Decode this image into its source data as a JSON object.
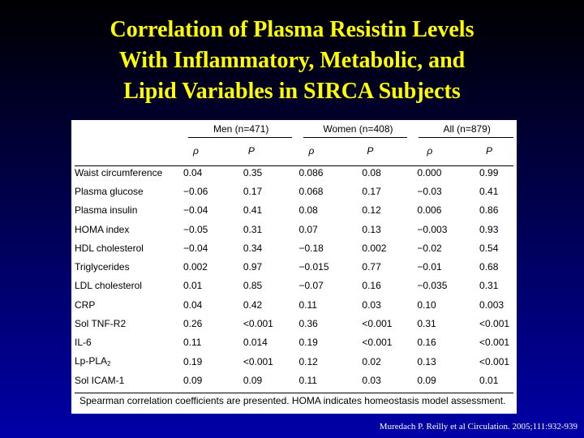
{
  "title": {
    "line1": "Correlation of Plasma Resistin Levels",
    "line2": "With Inflammatory, Metabolic, and",
    "line3": "Lipid Variables in SIRCA Subjects"
  },
  "table": {
    "groups": [
      "Men (n=471)",
      "Women (n=408)",
      "All (n=879)"
    ],
    "subheaders": [
      "ρ",
      "P",
      "ρ",
      "P",
      "ρ",
      "P"
    ],
    "rows": [
      {
        "label": "Waist circumference",
        "values": [
          "0.04",
          "0.35",
          "0.086",
          "0.08",
          "0.000",
          "0.99"
        ]
      },
      {
        "label": "Plasma glucose",
        "values": [
          "−0.06",
          "0.17",
          "0.068",
          "0.17",
          "−0.03",
          "0.41"
        ]
      },
      {
        "label": "Plasma insulin",
        "values": [
          "−0.04",
          "0.41",
          "0.08",
          "0.12",
          "0.006",
          "0.86"
        ]
      },
      {
        "label": "HOMA index",
        "values": [
          "−0.05",
          "0.31",
          "0.07",
          "0.13",
          "−0.003",
          "0.93"
        ]
      },
      {
        "label": "HDL cholesterol",
        "values": [
          "−0.04",
          "0.34",
          "−0.18",
          "0.002",
          "−0.02",
          "0.54"
        ]
      },
      {
        "label": "Triglycerides",
        "values": [
          "0.002",
          "0.97",
          "−0.015",
          "0.77",
          "−0.01",
          "0.68"
        ]
      },
      {
        "label": "LDL cholesterol",
        "values": [
          "0.01",
          "0.85",
          "−0.07",
          "0.16",
          "−0.035",
          "0.31"
        ]
      },
      {
        "label": "CRP",
        "values": [
          "0.04",
          "0.42",
          "0.11",
          "0.03",
          "0.10",
          "0.003"
        ]
      },
      {
        "label": "Sol TNF-R2",
        "values": [
          "0.26",
          "<0.001",
          "0.36",
          "<0.001",
          "0.31",
          "<0.001"
        ]
      },
      {
        "label": "IL-6",
        "values": [
          "0.11",
          "0.014",
          "0.19",
          "<0.001",
          "0.16",
          "<0.001"
        ]
      },
      {
        "label": "Lp-PLA",
        "label_sub": "2",
        "values": [
          "0.19",
          "<0.001",
          "0.12",
          "0.02",
          "0.13",
          "<0.001"
        ]
      },
      {
        "label": "Sol ICAM-1",
        "values": [
          "0.09",
          "0.09",
          "0.11",
          "0.03",
          "0.09",
          "0.01"
        ]
      }
    ],
    "footnote": "Spearman correlation coefficients are presented. HOMA indicates homeostasis model assessment."
  },
  "citation": "Muredach P. Reilly et al Circulation. 2005;111:932-939"
}
